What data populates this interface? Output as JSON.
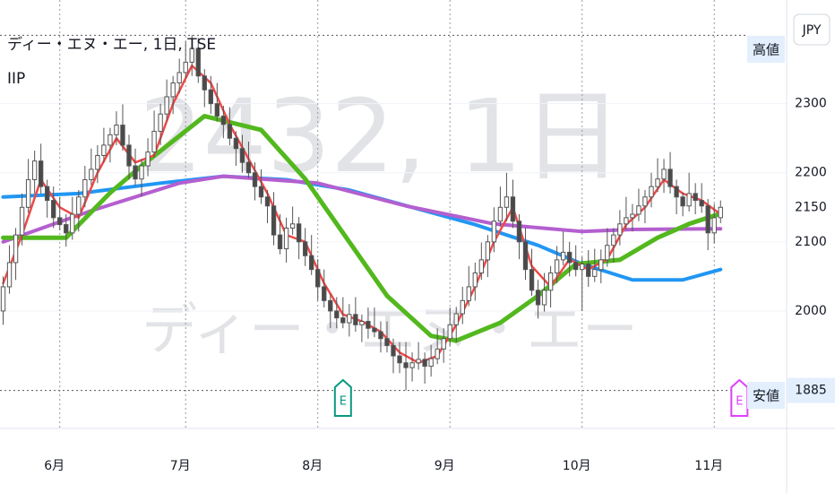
{
  "chart_data": {
    "type": "candlestick",
    "title": "ディー・エヌ・エー, 1日, TSE",
    "subtitle": "IIP",
    "watermark": [
      "2432, 1日",
      "ディー・エヌ・エー"
    ],
    "currency": "JPY",
    "high_label": "高値",
    "low_label": "安値",
    "xlim": [
      -0.5,
      124.5
    ],
    "xticks": [
      {
        "value": 9,
        "label": "6月"
      },
      {
        "value": 29,
        "label": "7月"
      },
      {
        "value": 50,
        "label": "8月"
      },
      {
        "value": 71,
        "label": "9月"
      },
      {
        "value": 92,
        "label": "10月"
      },
      {
        "value": 113,
        "label": "11月"
      }
    ],
    "ylim": [
      1830,
      2450
    ],
    "yticks": [
      2000,
      2100,
      2200,
      2300
    ],
    "grid": true,
    "candles": {
      "open": [
        2000,
        2035,
        2070,
        2110,
        2150,
        2190,
        2217,
        2180,
        2160,
        2135,
        2125,
        2113,
        2140,
        2165,
        2190,
        2205,
        2225,
        2240,
        2255,
        2269,
        2240,
        2210,
        2191,
        2210,
        2230,
        2260,
        2285,
        2310,
        2330,
        2345,
        2360,
        2380,
        2340,
        2320,
        2300,
        2282,
        2270,
        2250,
        2235,
        2215,
        2200,
        2180,
        2165,
        2152,
        2110,
        2090,
        2120,
        2126,
        2100,
        2080,
        2060,
        2035,
        2015,
        2000,
        1990,
        1983,
        1995,
        1980,
        1985,
        1975,
        1970,
        1960,
        1950,
        1935,
        1925,
        1918,
        1925,
        1930,
        1920,
        1931,
        1945,
        1960,
        1980,
        1996,
        2015,
        2035,
        2055,
        2074,
        2100,
        2130,
        2150,
        2165,
        2130,
        2100,
        2060,
        2030,
        2009,
        2030,
        2055,
        2074,
        2085,
        2070,
        2060,
        2068,
        2050,
        2060,
        2074,
        2095,
        2110,
        2126,
        2135,
        2140,
        2152,
        2165,
        2180,
        2191,
        2205,
        2180,
        2165,
        2152,
        2170,
        2160,
        2152,
        2113,
        2135
      ],
      "high": [
        2050,
        2095,
        2120,
        2170,
        2220,
        2232,
        2242,
        2190,
        2180,
        2165,
        2140,
        2165,
        2175,
        2210,
        2235,
        2240,
        2265,
        2265,
        2289,
        2299,
        2255,
        2235,
        2220,
        2250,
        2290,
        2300,
        2335,
        2340,
        2365,
        2390,
        2399,
        2395,
        2350,
        2340,
        2330,
        2297,
        2295,
        2260,
        2255,
        2245,
        2215,
        2205,
        2175,
        2172,
        2140,
        2135,
        2151,
        2136,
        2120,
        2110,
        2075,
        2060,
        2025,
        2020,
        2020,
        2010,
        2020,
        1995,
        2005,
        2005,
        1985,
        1985,
        1960,
        1955,
        1955,
        1940,
        1955,
        1940,
        1951,
        1975,
        1975,
        2005,
        2006,
        2035,
        2065,
        2070,
        2099,
        2110,
        2150,
        2180,
        2200,
        2190,
        2140,
        2120,
        2090,
        2045,
        2055,
        2065,
        2094,
        2115,
        2100,
        2095,
        2078,
        2088,
        2090,
        2089,
        2120,
        2120,
        2146,
        2165,
        2155,
        2177,
        2175,
        2200,
        2221,
        2220,
        2230,
        2190,
        2172,
        2200,
        2185,
        2185,
        2162,
        2155,
        2160
      ],
      "low": [
        1980,
        2025,
        2045,
        2095,
        2142,
        2170,
        2170,
        2135,
        2120,
        2117,
        2093,
        2103,
        2115,
        2150,
        2182,
        2185,
        2215,
        2215,
        2240,
        2232,
        2190,
        2181,
        2166,
        2195,
        2222,
        2240,
        2275,
        2285,
        2315,
        2337,
        2340,
        2330,
        2295,
        2285,
        2274,
        2250,
        2240,
        2210,
        2200,
        2192,
        2160,
        2155,
        2127,
        2095,
        2082,
        2070,
        2110,
        2075,
        2065,
        2052,
        2015,
        2005,
        1975,
        1975,
        1975,
        1963,
        1970,
        1955,
        1960,
        1962,
        1940,
        1940,
        1910,
        1910,
        1885,
        1898,
        1915,
        1895,
        1905,
        1923,
        1925,
        1950,
        1955,
        1981,
        2007,
        2015,
        2045,
        2049,
        2085,
        2122,
        2130,
        2120,
        2075,
        2045,
        2022,
        1989,
        1999,
        2005,
        2040,
        2066,
        2050,
        2050,
        2000,
        2035,
        2042,
        2040,
        2064,
        2070,
        2095,
        2118,
        2115,
        2130,
        2127,
        2150,
        2172,
        2171,
        2170,
        2140,
        2137,
        2144,
        2140,
        2142,
        2088,
        2098,
        2127
      ],
      "close": [
        2035,
        2070,
        2110,
        2150,
        2190,
        2217,
        2180,
        2160,
        2135,
        2125,
        2113,
        2140,
        2165,
        2190,
        2205,
        2225,
        2240,
        2255,
        2269,
        2240,
        2210,
        2191,
        2210,
        2230,
        2260,
        2285,
        2310,
        2330,
        2345,
        2360,
        2380,
        2340,
        2320,
        2300,
        2282,
        2270,
        2250,
        2235,
        2215,
        2200,
        2180,
        2165,
        2152,
        2110,
        2090,
        2120,
        2126,
        2100,
        2080,
        2060,
        2035,
        2015,
        2000,
        1990,
        1983,
        1995,
        1980,
        1985,
        1975,
        1970,
        1960,
        1950,
        1935,
        1925,
        1918,
        1925,
        1930,
        1920,
        1931,
        1945,
        1960,
        1980,
        1996,
        2015,
        2035,
        2055,
        2074,
        2100,
        2130,
        2150,
        2165,
        2130,
        2100,
        2060,
        2030,
        2009,
        2030,
        2055,
        2074,
        2085,
        2070,
        2060,
        2068,
        2050,
        2060,
        2074,
        2095,
        2110,
        2126,
        2135,
        2140,
        2152,
        2165,
        2180,
        2191,
        2205,
        2180,
        2165,
        2152,
        2170,
        2160,
        2152,
        2113,
        2135,
        2150
      ],
      "up_color": "#ffffff",
      "down_color": "#4a4a4a",
      "edge_color": "#555555"
    },
    "series": [
      {
        "color": "#2196f3",
        "width": 4,
        "x": [
          0,
          12,
          25,
          35,
          45,
          55,
          65,
          75,
          85,
          92,
          100,
          108,
          114
        ],
        "values": [
          2165,
          2170,
          2185,
          2195,
          2190,
          2175,
          2150,
          2125,
          2095,
          2068,
          2045,
          2045,
          2060
        ]
      },
      {
        "color": "#b45fcf",
        "width": 4,
        "x": [
          0,
          14,
          28,
          35,
          50,
          64,
          78,
          92,
          100,
          114
        ],
        "values": [
          2100,
          2145,
          2185,
          2195,
          2185,
          2152,
          2126,
          2115,
          2118,
          2119
        ]
      },
      {
        "color": "#52b81e",
        "width": 5,
        "x": [
          0,
          10,
          17,
          22,
          32,
          41,
          48,
          54,
          61,
          68,
          72,
          79,
          85,
          91,
          98,
          104,
          109,
          114
        ],
        "values": [
          2106,
          2106,
          2171,
          2210,
          2282,
          2262,
          2191,
          2113,
          2022,
          1964,
          1957,
          1983,
          2022,
          2068,
          2074,
          2106,
          2126,
          2141
        ]
      },
      {
        "color": "#f04848",
        "width": 2.5,
        "x": [
          0,
          3,
          6,
          9,
          12,
          15,
          18,
          21,
          24,
          27,
          30,
          33,
          36,
          39,
          42,
          45,
          48,
          51,
          54,
          57,
          60,
          63,
          66,
          69,
          72,
          75,
          78,
          81,
          84,
          87,
          90,
          93,
          96,
          99,
          102,
          105,
          108,
          111,
          114
        ],
        "values": [
          2040,
          2110,
          2190,
          2150,
          2135,
          2200,
          2250,
          2215,
          2225,
          2300,
          2355,
          2330,
          2270,
          2220,
          2170,
          2110,
          2100,
          2040,
          1995,
          1985,
          1970,
          1940,
          1925,
          1935,
          1980,
          2035,
          2100,
          2150,
          2065,
          2035,
          2075,
          2060,
          2075,
          2125,
          2150,
          2190,
          2170,
          2160,
          2140
        ]
      }
    ],
    "events": [
      {
        "label": "E",
        "x": 54,
        "color": "#089981"
      },
      {
        "label": "E",
        "x": 117,
        "color": "#e040fb"
      }
    ]
  }
}
